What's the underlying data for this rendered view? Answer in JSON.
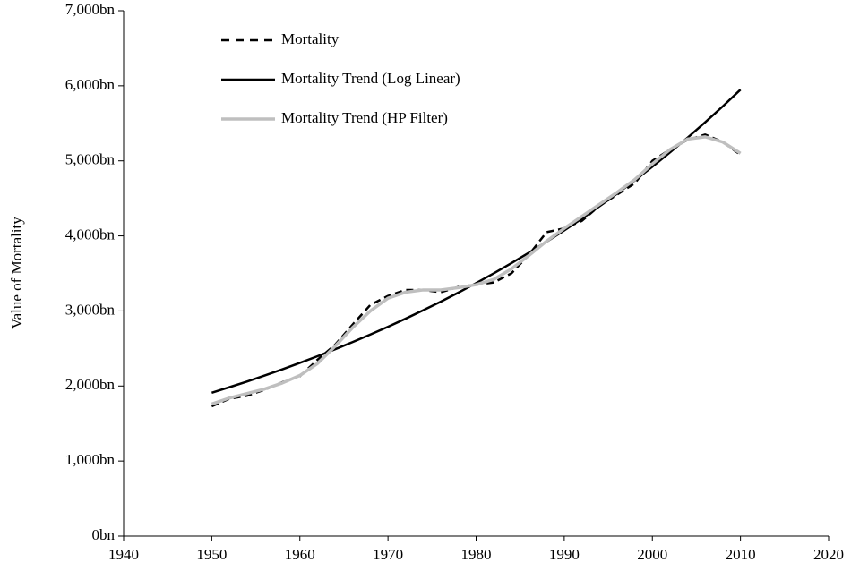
{
  "chart_data": {
    "type": "line",
    "y_label": "Value of Mortality",
    "x": [
      1950,
      1952,
      1954,
      1956,
      1958,
      1960,
      1962,
      1964,
      1966,
      1968,
      1970,
      1972,
      1974,
      1976,
      1978,
      1980,
      1982,
      1984,
      1986,
      1988,
      1990,
      1992,
      1994,
      1996,
      1998,
      2000,
      2002,
      2004,
      2006,
      2008,
      2010
    ],
    "series": [
      {
        "name": "Mortality",
        "color": "#000000",
        "dashed": true,
        "values": [
          1730,
          1830,
          1870,
          1950,
          2050,
          2130,
          2350,
          2550,
          2820,
          3080,
          3200,
          3280,
          3280,
          3250,
          3320,
          3350,
          3380,
          3500,
          3750,
          4050,
          4100,
          4200,
          4400,
          4550,
          4700,
          5000,
          5150,
          5280,
          5350,
          5250,
          5080
        ]
      },
      {
        "name": "Mortality Trend (Log Linear)",
        "color": "#000000",
        "dashed": false,
        "values": [
          1910,
          1984,
          2060,
          2140,
          2222,
          2308,
          2397,
          2490,
          2586,
          2686,
          2789,
          2897,
          3009,
          3125,
          3245,
          3371,
          3501,
          3636,
          3776,
          3922,
          4073,
          4230,
          4394,
          4563,
          4739,
          4922,
          5112,
          5309,
          5514,
          5727,
          5948
        ]
      },
      {
        "name": "Mortality Trend (HP Filter)",
        "color": "#bfbfbf",
        "dashed": false,
        "values": [
          1760,
          1840,
          1900,
          1960,
          2040,
          2140,
          2300,
          2530,
          2780,
          3000,
          3170,
          3250,
          3280,
          3280,
          3310,
          3350,
          3420,
          3560,
          3740,
          3930,
          4100,
          4260,
          4420,
          4580,
          4750,
          4960,
          5150,
          5290,
          5320,
          5250,
          5100
        ]
      }
    ],
    "xlim": [
      1940,
      2020
    ],
    "xticks": [
      1940,
      1950,
      1960,
      1970,
      1980,
      1990,
      2000,
      2010,
      2020
    ],
    "ylim": [
      0,
      7000
    ],
    "yticks": [
      {
        "value": 0,
        "label": "0bn"
      },
      {
        "value": 1000,
        "label": "1,000bn"
      },
      {
        "value": 2000,
        "label": "2,000bn"
      },
      {
        "value": 3000,
        "label": "3,000bn"
      },
      {
        "value": 4000,
        "label": "4,000bn"
      },
      {
        "value": 5000,
        "label": "5,000bn"
      },
      {
        "value": 6000,
        "label": "6,000bn"
      },
      {
        "value": 7000,
        "label": "7,000bn"
      }
    ],
    "legend": "upper left"
  }
}
